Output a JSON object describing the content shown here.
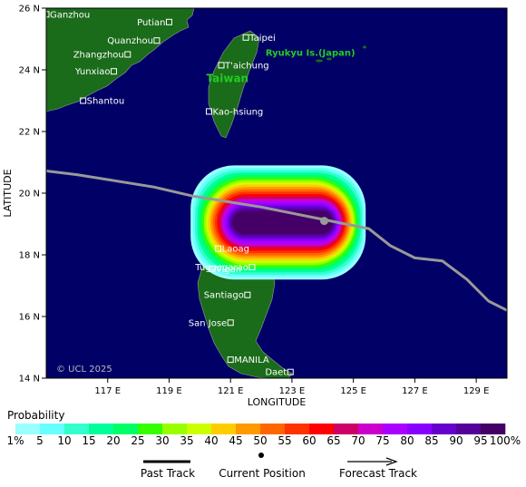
{
  "map": {
    "lon_range": [
      115.0,
      130.0
    ],
    "lat_range": [
      14.0,
      26.0
    ],
    "x_ticks": [
      117,
      119,
      121,
      123,
      125,
      127,
      129
    ],
    "x_tick_labels": [
      "117 E",
      "119 E",
      "121 E",
      "123 E",
      "125 E",
      "127 E",
      "129 E"
    ],
    "y_ticks": [
      14,
      16,
      18,
      20,
      22,
      24,
      26
    ],
    "y_tick_labels": [
      "14 N",
      "16 N",
      "18 N",
      "20 N",
      "22 N",
      "24 N",
      "26 N"
    ],
    "xlabel": "LONGITUDE",
    "ylabel": "LATITUDE",
    "copyright": "© UCL 2025",
    "ocean_color": "#000066",
    "land_color": "#1a6b1a",
    "cities": [
      {
        "name": "Ganzhou",
        "lon": 115.0,
        "lat": 25.8,
        "label_side": "right"
      },
      {
        "name": "Putian",
        "lon": 119.0,
        "lat": 25.55,
        "label_side": "left"
      },
      {
        "name": "Quanzhou",
        "lon": 118.6,
        "lat": 24.95,
        "label_side": "left"
      },
      {
        "name": "Taipei",
        "lon": 121.5,
        "lat": 25.05,
        "label_side": "right"
      },
      {
        "name": "Zhangzhou",
        "lon": 117.65,
        "lat": 24.5,
        "label_side": "left"
      },
      {
        "name": "T'aichung",
        "lon": 120.7,
        "lat": 24.15,
        "label_side": "right"
      },
      {
        "name": "Yunxiao",
        "lon": 117.2,
        "lat": 23.95,
        "label_side": "left"
      },
      {
        "name": "Shantou",
        "lon": 116.2,
        "lat": 23.0,
        "label_side": "right"
      },
      {
        "name": "Kao-hsiung",
        "lon": 120.3,
        "lat": 22.65,
        "label_side": "right"
      },
      {
        "name": "Laoag",
        "lon": 120.6,
        "lat": 18.2,
        "label_side": "right"
      },
      {
        "name": "Tuguegarao",
        "lon": 121.7,
        "lat": 17.6,
        "label_side": "left"
      },
      {
        "name": "Vigan",
        "lon": 120.4,
        "lat": 17.55,
        "label_side": "right"
      },
      {
        "name": "Santiago",
        "lon": 121.55,
        "lat": 16.7,
        "label_side": "left"
      },
      {
        "name": "San Jose",
        "lon": 121.0,
        "lat": 15.8,
        "label_side": "left"
      },
      {
        "name": "MANILA",
        "lon": 121.0,
        "lat": 14.6,
        "label_side": "right"
      },
      {
        "name": "Daet",
        "lon": 122.95,
        "lat": 14.2,
        "label_side": "left"
      }
    ],
    "region_labels": [
      {
        "text": "Taiwan",
        "lon": 120.9,
        "lat": 23.6
      },
      {
        "text": "Ryukyu Is.(Japan)",
        "lon": 123.6,
        "lat": 24.45
      }
    ],
    "track": [
      [
        113.5,
        20.9
      ],
      [
        116.0,
        20.6
      ],
      [
        118.5,
        20.2
      ],
      [
        119.8,
        19.9
      ],
      [
        122.0,
        19.55
      ],
      [
        124.0,
        19.15
      ],
      [
        125.5,
        18.85
      ],
      [
        126.2,
        18.3
      ],
      [
        127.0,
        17.9
      ],
      [
        127.9,
        17.8
      ],
      [
        128.7,
        17.2
      ],
      [
        129.4,
        16.5
      ],
      [
        130.0,
        16.2
      ]
    ],
    "current_position": {
      "lon": 124.05,
      "lat": 19.1
    },
    "probability_region": {
      "west_lon": 119.7,
      "east_lon": 125.4,
      "center_lat": 19.05,
      "half_height_lat": 1.85
    }
  },
  "legend": {
    "title": "Probability",
    "levels": [
      1,
      5,
      10,
      15,
      20,
      25,
      30,
      35,
      40,
      45,
      50,
      55,
      60,
      65,
      70,
      75,
      80,
      85,
      90,
      95,
      100
    ],
    "labels": [
      "1%",
      "5",
      "10",
      "15",
      "20",
      "25",
      "30",
      "35",
      "40",
      "45",
      "50",
      "55",
      "60",
      "65",
      "70",
      "75",
      "80",
      "85",
      "90",
      "95",
      "100%"
    ],
    "colors": [
      "#99ffff",
      "#66ffff",
      "#33ffcc",
      "#00ff99",
      "#00ff66",
      "#33ff00",
      "#99ff00",
      "#ccff00",
      "#ffcc00",
      "#ff9900",
      "#ff6600",
      "#ff3300",
      "#ff0000",
      "#cc0066",
      "#cc00cc",
      "#aa00ff",
      "#8800ff",
      "#6600cc",
      "#550099",
      "#440066"
    ],
    "past_track_label": "Past Track",
    "current_position_label": "Current Position",
    "forecast_track_label": "Forecast Track"
  }
}
